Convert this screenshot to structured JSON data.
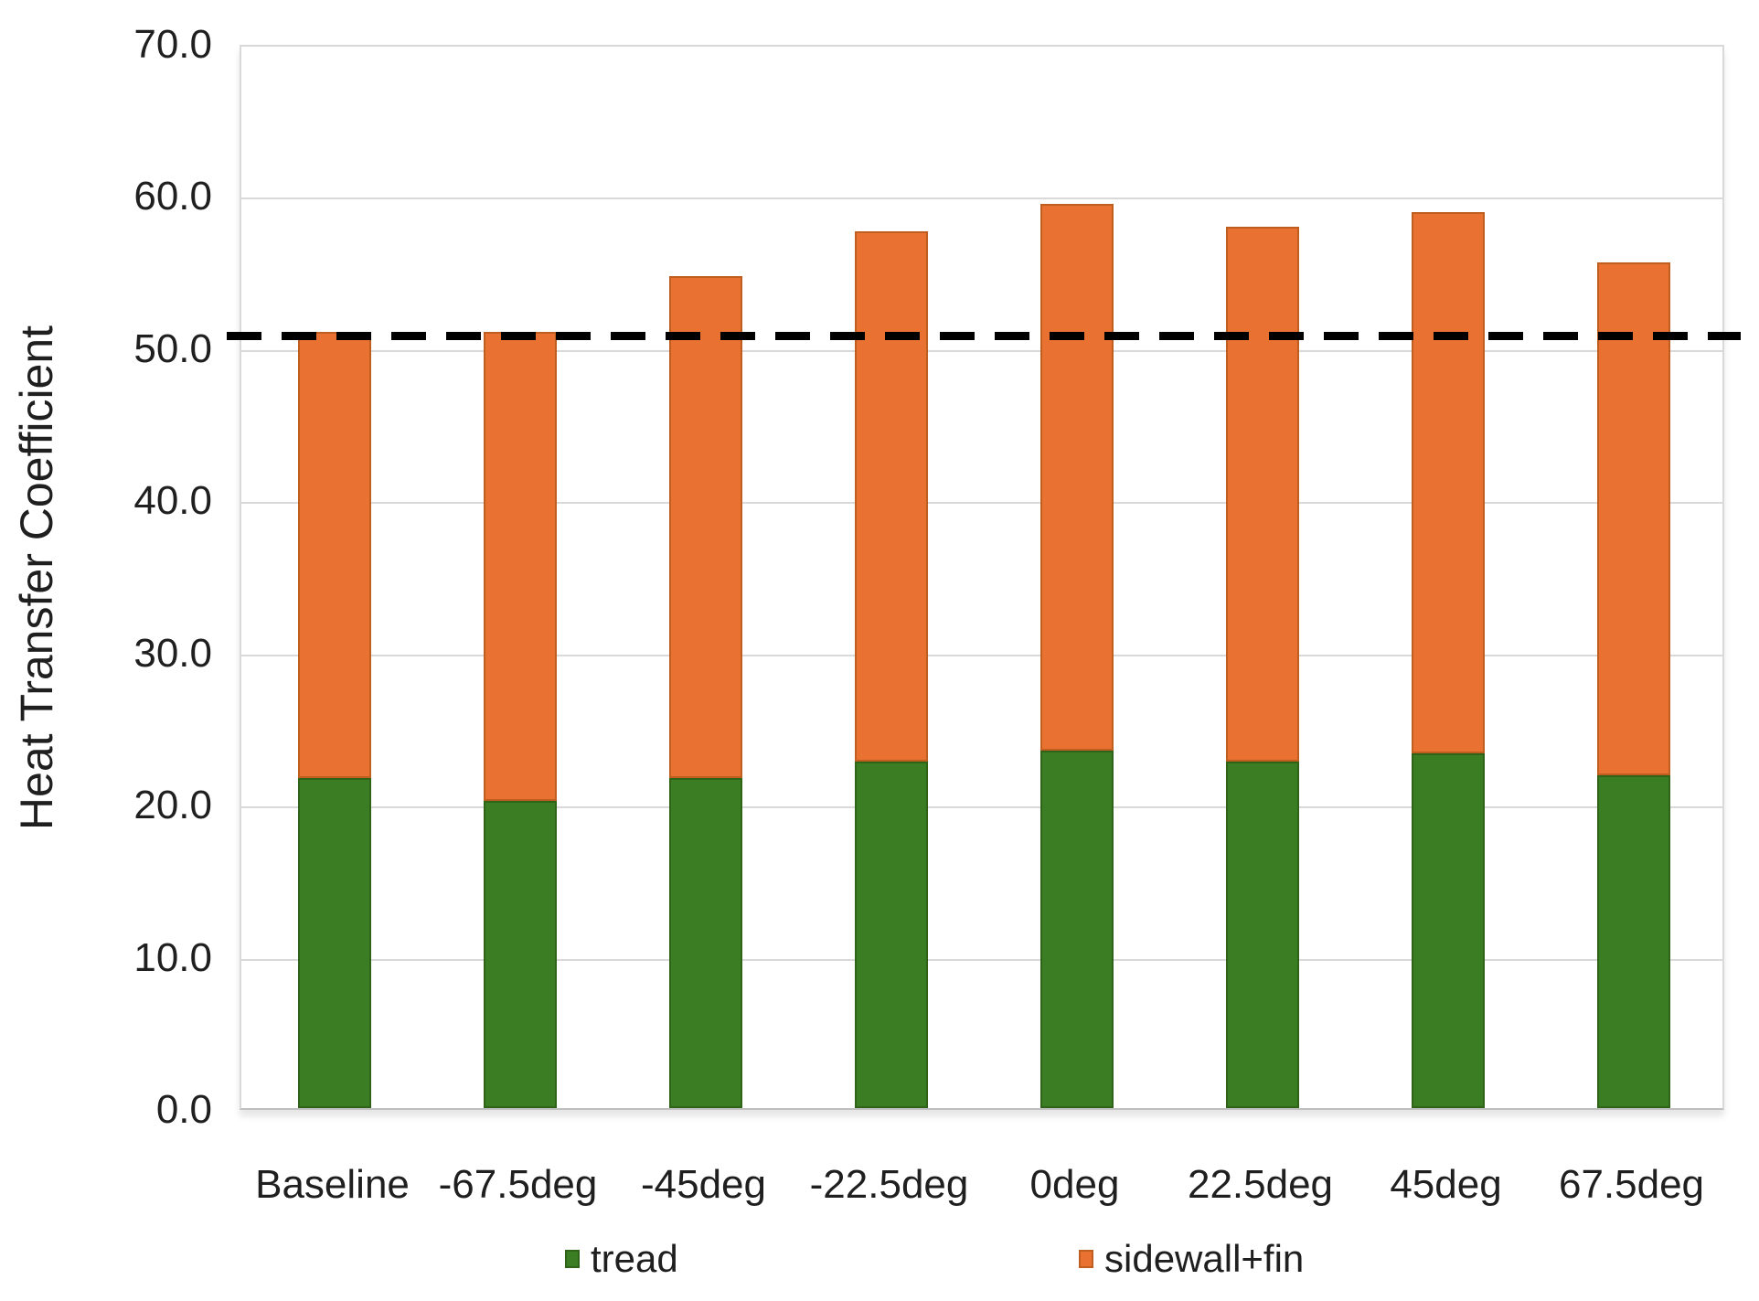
{
  "chart_data": {
    "type": "bar",
    "stacked": true,
    "orientation": "vertical",
    "categories": [
      "Baseline",
      "-67.5deg",
      "-45deg",
      "-22.5deg",
      "0deg",
      "22.5deg",
      "45deg",
      "67.5deg"
    ],
    "series": [
      {
        "name": "tread",
        "color": "#3b7d23",
        "edge_color": "#2e6318",
        "values": [
          21.7,
          20.2,
          21.7,
          22.8,
          23.5,
          22.8,
          23.3,
          21.9
        ]
      },
      {
        "name": "sidewall+fin",
        "color": "#e97132",
        "edge_color": "#c05e1f",
        "values": [
          29.3,
          30.8,
          33.0,
          34.8,
          35.9,
          35.1,
          35.6,
          33.7
        ]
      }
    ],
    "stack_totals": [
      51.0,
      51.0,
      54.7,
      57.6,
      59.4,
      57.9,
      58.9,
      55.6
    ],
    "title": "",
    "xlabel": "",
    "ylabel": "Heat Transfer Coefficient",
    "ylim": [
      0.0,
      70.0
    ],
    "ytick_step": 10.0,
    "ytick_labels": [
      "0.0",
      "10.0",
      "20.0",
      "30.0",
      "40.0",
      "50.0",
      "60.0",
      "70.0"
    ],
    "grid": true,
    "gridline_color": "#d9d9d9",
    "reference_line": {
      "value": 51.0,
      "style": "dashed",
      "color": "#000000"
    },
    "legend_position": "bottom",
    "legend_entries": [
      "tread",
      "sidewall+fin"
    ]
  }
}
